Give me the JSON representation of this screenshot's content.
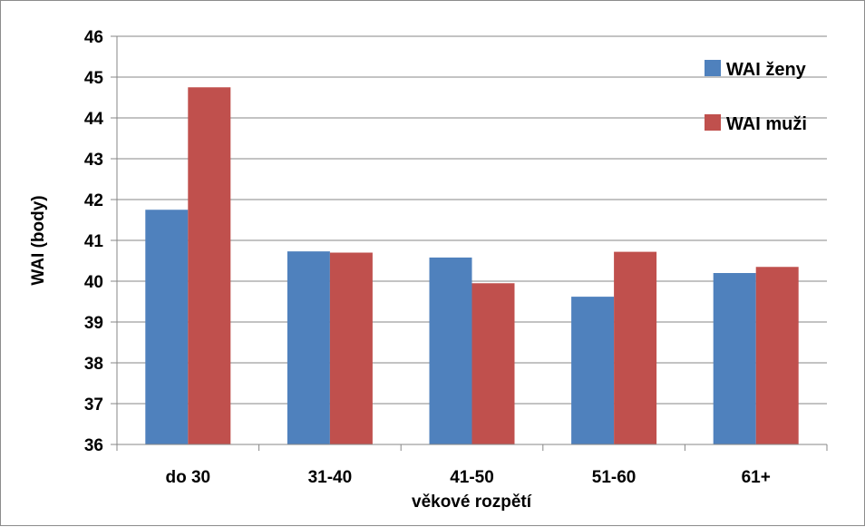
{
  "chart_data": {
    "type": "bar",
    "categories": [
      "do 30",
      "31-40",
      "41-50",
      "51-60",
      "61+"
    ],
    "series": [
      {
        "name": "WAI ženy",
        "color": "#4f81bd",
        "values": [
          41.75,
          40.73,
          40.58,
          39.62,
          40.2
        ]
      },
      {
        "name": "WAI muži",
        "color": "#c0504d",
        "values": [
          44.75,
          40.7,
          39.95,
          40.72,
          40.35
        ]
      }
    ],
    "xlabel": "věkové rozpětí",
    "ylabel": "WAI (body)",
    "ylim": [
      36,
      46
    ],
    "yticks": [
      36,
      37,
      38,
      39,
      40,
      41,
      42,
      43,
      44,
      45,
      46
    ],
    "grid": true,
    "legend_position": "top-right"
  }
}
